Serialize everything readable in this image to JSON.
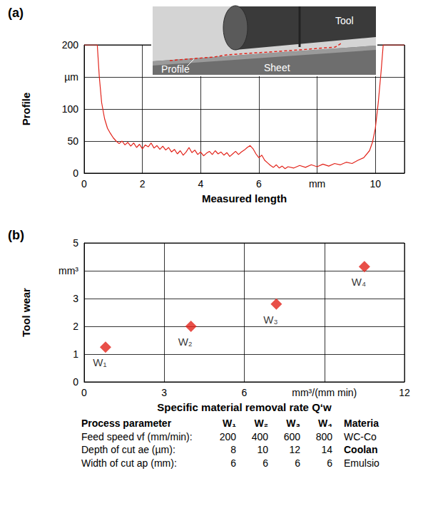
{
  "chart_data": [
    {
      "type": "line",
      "title": "(a)",
      "x_label": "Measured length",
      "y_label": "Profile",
      "annotations": [
        "Tool",
        "Profile",
        "Sheet"
      ],
      "x": [
        0,
        0.45,
        0.52,
        0.6,
        0.7,
        0.8,
        0.9,
        1.0,
        1.1,
        1.2,
        1.3,
        1.4,
        1.5,
        1.6,
        1.7,
        1.8,
        1.9,
        2.0,
        2.1,
        2.2,
        2.3,
        2.4,
        2.5,
        2.6,
        2.7,
        2.8,
        2.9,
        3.0,
        3.1,
        3.2,
        3.3,
        3.4,
        3.5,
        3.6,
        3.7,
        3.8,
        3.9,
        4.0,
        4.1,
        4.2,
        4.3,
        4.4,
        4.5,
        4.6,
        4.7,
        4.8,
        4.9,
        5.0,
        5.1,
        5.2,
        5.3,
        5.4,
        5.5,
        5.6,
        5.7,
        5.8,
        5.9,
        6.0,
        6.1,
        6.2,
        6.3,
        6.4,
        6.5,
        6.6,
        6.7,
        6.8,
        6.9,
        7.0,
        7.2,
        7.4,
        7.6,
        7.8,
        8.0,
        8.2,
        8.4,
        8.6,
        8.8,
        9.0,
        9.2,
        9.4,
        9.6,
        9.8,
        9.9,
        10.0,
        10.1,
        10.2,
        10.27,
        11
      ],
      "values": [
        200,
        200,
        150,
        110,
        85,
        70,
        62,
        55,
        50,
        46,
        50,
        44,
        48,
        42,
        47,
        40,
        45,
        38,
        44,
        41,
        47,
        39,
        43,
        37,
        42,
        36,
        40,
        33,
        37,
        30,
        35,
        28,
        33,
        40,
        32,
        36,
        29,
        33,
        27,
        31,
        34,
        29,
        35,
        30,
        33,
        28,
        32,
        26,
        30,
        34,
        29,
        33,
        36,
        40,
        43,
        38,
        30,
        24,
        28,
        20,
        16,
        12,
        9,
        13,
        8,
        11,
        7,
        10,
        8,
        12,
        9,
        13,
        10,
        14,
        11,
        15,
        13,
        17,
        15,
        20,
        24,
        35,
        48,
        70,
        110,
        160,
        200,
        200
      ],
      "color": "#e2231a",
      "xlim": [
        0,
        11
      ],
      "xticks": [
        0,
        2,
        4,
        6,
        {
          "value": 8,
          "label": "mm"
        },
        10
      ],
      "ylim": [
        0,
        200
      ],
      "yticks": [
        0,
        50,
        100,
        {
          "value": 150,
          "label": "µm"
        },
        200
      ],
      "grid": true
    },
    {
      "type": "scatter",
      "title": "(b)",
      "x_label": "Specific material removal rate Q‘w",
      "y_label": "Tool wear",
      "x": [
        0.8,
        4.0,
        7.2,
        10.5
      ],
      "values": [
        1.25,
        2.0,
        2.8,
        4.15
      ],
      "labels": [
        "W₁",
        "W₂",
        "W₃",
        "W₄"
      ],
      "color": "#e2231a",
      "marker": "diamond",
      "xlim": [
        0,
        12
      ],
      "xticks": [
        0,
        3,
        6,
        {
          "value": 9,
          "label": "mm³/(mm min)"
        },
        12
      ],
      "ylim": [
        0,
        5
      ],
      "yticks": [
        0,
        1,
        2,
        3,
        {
          "value": 4,
          "label": "mm³"
        },
        5
      ],
      "grid": true
    }
  ],
  "table": {
    "header": [
      "Process parameter",
      "W₁",
      "W₂",
      "W₃",
      "W₄",
      "Materia"
    ],
    "rows": [
      [
        "Feed speed vf (mm/min):",
        200,
        400,
        600,
        800,
        "WC-Co"
      ],
      [
        "Depth of cut ae (µm):",
        8,
        10,
        12,
        14,
        "Coolan"
      ],
      [
        "Width of cut ap (mm):",
        6,
        6,
        6,
        6,
        "Emulsio"
      ]
    ]
  }
}
